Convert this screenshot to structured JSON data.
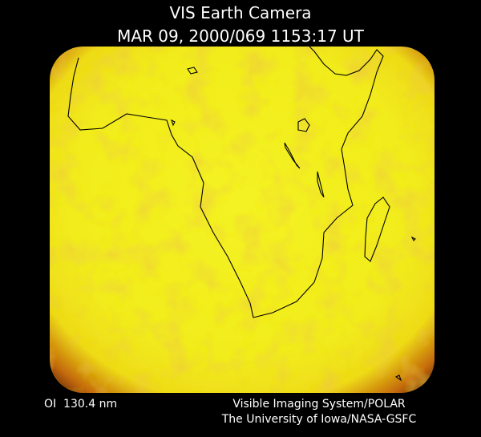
{
  "header": {
    "title": "VIS Earth Camera",
    "timestamp": "MAR 09, 2000/069 1153:17 UT"
  },
  "footer": {
    "filter": "OI  130.4 nm",
    "instrument": "Visible Imaging System/POLAR",
    "credit": "The University of Iowa/NASA-GSFC"
  }
}
